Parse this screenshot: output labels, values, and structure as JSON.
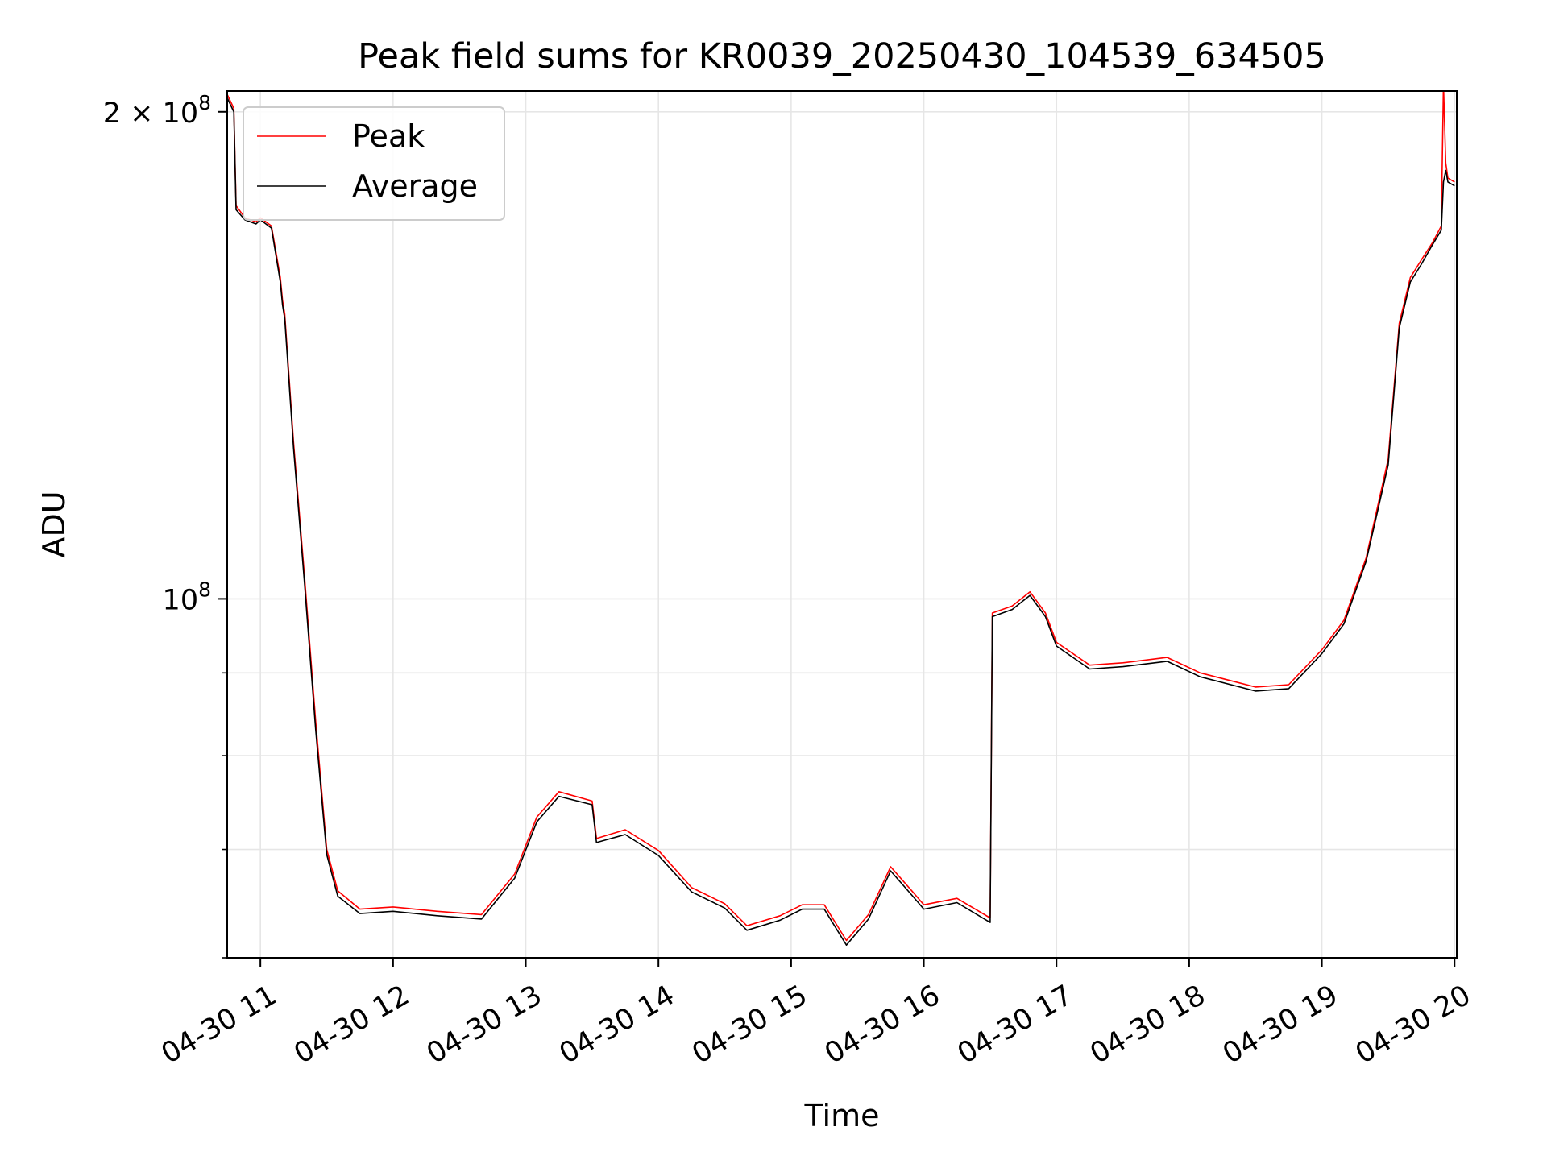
{
  "chart_data": {
    "type": "line",
    "title": "Peak field sums for KR0039_20250430_104539_634505",
    "xlabel": "Time",
    "ylabel": "ADU",
    "y_scale": "log",
    "grid": true,
    "legend_position": "upper-left",
    "xlim": [
      "2025-04-30 10:45",
      "2025-04-30 20:01"
    ],
    "ylim": [
      60000000,
      206000000
    ],
    "x_ticks": [
      "04-30 11",
      "04-30 12",
      "04-30 13",
      "04-30 14",
      "04-30 15",
      "04-30 16",
      "04-30 17",
      "04-30 18",
      "04-30 19",
      "04-30 20"
    ],
    "x_tick_times": [
      "2025-04-30 11:00",
      "2025-04-30 12:00",
      "2025-04-30 13:00",
      "2025-04-30 14:00",
      "2025-04-30 15:00",
      "2025-04-30 16:00",
      "2025-04-30 17:00",
      "2025-04-30 18:00",
      "2025-04-30 19:00",
      "2025-04-30 20:00"
    ],
    "y_ticks_labeled": [
      {
        "value": 200000000,
        "mantissa": "2",
        "times": "×",
        "base": "10",
        "exponent": "8"
      },
      {
        "value": 100000000,
        "mantissa": "",
        "times": "",
        "base": "10",
        "exponent": "8"
      }
    ],
    "y_ticks_minor": [
      60000000,
      70000000,
      80000000,
      90000000
    ],
    "series": [
      {
        "name": "Peak",
        "color": "#ff0000",
        "x": [
          "2025-04-30 10:45",
          "2025-04-30 10:48",
          "2025-04-30 10:49",
          "2025-04-30 10:53",
          "2025-04-30 10:58",
          "2025-04-30 11:00",
          "2025-04-30 11:05",
          "2025-04-30 11:09",
          "2025-04-30 11:10",
          "2025-04-30 11:11",
          "2025-04-30 11:15",
          "2025-04-30 11:20",
          "2025-04-30 11:25",
          "2025-04-30 11:30",
          "2025-04-30 11:35",
          "2025-04-30 11:45",
          "2025-04-30 12:00",
          "2025-04-30 12:20",
          "2025-04-30 12:40",
          "2025-04-30 12:55",
          "2025-04-30 13:05",
          "2025-04-30 13:15",
          "2025-04-30 13:30",
          "2025-04-30 13:32",
          "2025-04-30 13:45",
          "2025-04-30 14:00",
          "2025-04-30 14:15",
          "2025-04-30 14:30",
          "2025-04-30 14:40",
          "2025-04-30 14:55",
          "2025-04-30 15:05",
          "2025-04-30 15:15",
          "2025-04-30 15:25",
          "2025-04-30 15:35",
          "2025-04-30 15:45",
          "2025-04-30 15:55",
          "2025-04-30 16:00",
          "2025-04-30 16:15",
          "2025-04-30 16:30",
          "2025-04-30 16:31",
          "2025-04-30 16:40",
          "2025-04-30 16:48",
          "2025-04-30 16:55",
          "2025-04-30 17:00",
          "2025-04-30 17:15",
          "2025-04-30 17:30",
          "2025-04-30 17:50",
          "2025-04-30 18:05",
          "2025-04-30 18:30",
          "2025-04-30 18:45",
          "2025-04-30 19:00",
          "2025-04-30 19:10",
          "2025-04-30 19:20",
          "2025-04-30 19:30",
          "2025-04-30 19:35",
          "2025-04-30 19:40",
          "2025-04-30 19:45",
          "2025-04-30 19:50",
          "2025-04-30 19:54",
          "2025-04-30 19:55",
          "2025-04-30 19:56",
          "2025-04-30 19:57",
          "2025-04-30 20:00"
        ],
        "y": [
          205000000,
          201000000,
          175000000,
          172000000,
          171000000,
          172000000,
          170000000,
          158000000,
          153000000,
          150000000,
          125000000,
          103000000,
          84000000,
          70000000,
          66000000,
          64300000,
          64500000,
          64100000,
          63800000,
          67600000,
          73300000,
          76000000,
          75000000,
          71100000,
          72000000,
          69900000,
          66300000,
          64800000,
          62800000,
          63700000,
          64700000,
          64700000,
          61500000,
          63800000,
          68300000,
          65900000,
          64700000,
          65300000,
          63500000,
          98000000,
          99000000,
          101000000,
          98000000,
          94000000,
          91000000,
          91300000,
          92000000,
          90000000,
          88200000,
          88500000,
          93000000,
          97000000,
          106000000,
          122000000,
          148000000,
          158000000,
          162000000,
          166000000,
          170000000,
          208000000,
          186000000,
          182000000,
          181000000
        ]
      },
      {
        "name": "Average",
        "color": "#000000",
        "x": [
          "2025-04-30 10:45",
          "2025-04-30 10:48",
          "2025-04-30 10:49",
          "2025-04-30 10:53",
          "2025-04-30 10:58",
          "2025-04-30 11:00",
          "2025-04-30 11:05",
          "2025-04-30 11:09",
          "2025-04-30 11:10",
          "2025-04-30 11:11",
          "2025-04-30 11:15",
          "2025-04-30 11:20",
          "2025-04-30 11:25",
          "2025-04-30 11:30",
          "2025-04-30 11:35",
          "2025-04-30 11:45",
          "2025-04-30 12:00",
          "2025-04-30 12:20",
          "2025-04-30 12:40",
          "2025-04-30 12:55",
          "2025-04-30 13:05",
          "2025-04-30 13:15",
          "2025-04-30 13:30",
          "2025-04-30 13:32",
          "2025-04-30 13:45",
          "2025-04-30 14:00",
          "2025-04-30 14:15",
          "2025-04-30 14:30",
          "2025-04-30 14:40",
          "2025-04-30 14:55",
          "2025-04-30 15:05",
          "2025-04-30 15:15",
          "2025-04-30 15:25",
          "2025-04-30 15:35",
          "2025-04-30 15:45",
          "2025-04-30 15:55",
          "2025-04-30 16:00",
          "2025-04-30 16:15",
          "2025-04-30 16:30",
          "2025-04-30 16:31",
          "2025-04-30 16:40",
          "2025-04-30 16:48",
          "2025-04-30 16:55",
          "2025-04-30 17:00",
          "2025-04-30 17:15",
          "2025-04-30 17:30",
          "2025-04-30 17:50",
          "2025-04-30 18:05",
          "2025-04-30 18:30",
          "2025-04-30 18:45",
          "2025-04-30 19:00",
          "2025-04-30 19:10",
          "2025-04-30 19:20",
          "2025-04-30 19:30",
          "2025-04-30 19:35",
          "2025-04-30 19:40",
          "2025-04-30 19:45",
          "2025-04-30 19:50",
          "2025-04-30 19:54",
          "2025-04-30 19:55",
          "2025-04-30 19:56",
          "2025-04-30 19:57",
          "2025-04-30 20:00"
        ],
        "y": [
          204000000,
          200000000,
          174000000,
          171500000,
          170500000,
          171500000,
          169500000,
          157000000,
          152000000,
          149000000,
          124000000,
          102000000,
          83000000,
          69500000,
          65500000,
          63900000,
          64100000,
          63700000,
          63400000,
          67200000,
          72800000,
          75500000,
          74600000,
          70700000,
          71500000,
          69400000,
          65900000,
          64400000,
          62400000,
          63300000,
          64300000,
          64300000,
          61100000,
          63400000,
          67900000,
          65500000,
          64300000,
          64900000,
          63100000,
          97500000,
          98500000,
          100500000,
          97500000,
          93500000,
          90500000,
          90800000,
          91500000,
          89500000,
          87700000,
          88000000,
          92500000,
          96500000,
          105500000,
          121000000,
          147000000,
          157000000,
          161000000,
          165500000,
          169000000,
          181000000,
          184000000,
          181000000,
          180000000
        ]
      }
    ]
  }
}
